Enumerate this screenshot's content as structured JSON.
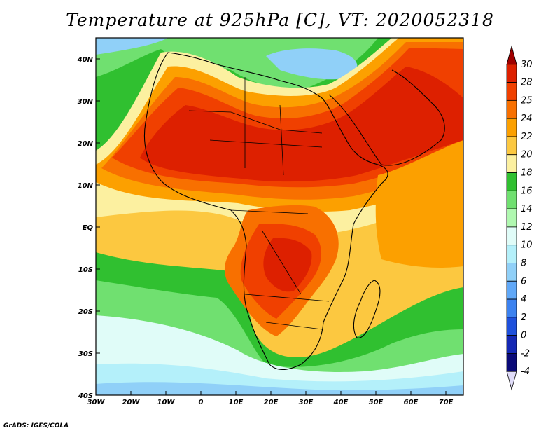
{
  "title": "Temperature at 925hPa [C], VT: 2020052318",
  "credit": "GrADS: IGES/COLA",
  "map": {
    "lon_range": [
      -30,
      75
    ],
    "lat_range": [
      -40,
      45
    ],
    "lon_ticks": [
      {
        "value": -30,
        "label": "30W"
      },
      {
        "value": -20,
        "label": "20W"
      },
      {
        "value": -10,
        "label": "10W"
      },
      {
        "value": 0,
        "label": "0"
      },
      {
        "value": 10,
        "label": "10E"
      },
      {
        "value": 20,
        "label": "20E"
      },
      {
        "value": 30,
        "label": "30E"
      },
      {
        "value": 40,
        "label": "40E"
      },
      {
        "value": 50,
        "label": "50E"
      },
      {
        "value": 60,
        "label": "60E"
      },
      {
        "value": 70,
        "label": "70E"
      }
    ],
    "lat_ticks": [
      {
        "value": 40,
        "label": "40N"
      },
      {
        "value": 30,
        "label": "30N"
      },
      {
        "value": 20,
        "label": "20N"
      },
      {
        "value": 10,
        "label": "10N"
      },
      {
        "value": 0,
        "label": "EQ"
      },
      {
        "value": -10,
        "label": "10S"
      },
      {
        "value": -20,
        "label": "20S"
      },
      {
        "value": -30,
        "label": "30S"
      },
      {
        "value": -40,
        "label": "40S"
      }
    ]
  },
  "colorbar": {
    "levels": [
      "30",
      "28",
      "25",
      "24",
      "22",
      "20",
      "18",
      "16",
      "14",
      "12",
      "10",
      "8",
      "6",
      "4",
      "2",
      "0",
      "-2",
      "-4"
    ],
    "colors": [
      "#a00000",
      "#dd2000",
      "#f04000",
      "#f87000",
      "#fca000",
      "#fcc840",
      "#fcf0a0",
      "#30c030",
      "#70e070",
      "#b0f8b0",
      "#e0fcf8",
      "#b4f0fa",
      "#90d0f8",
      "#60a8f8",
      "#3c82f0",
      "#1e50dc",
      "#1428b4",
      "#0a0a78",
      "#e0dcf8"
    ]
  },
  "palette": {
    "hot": "#dd2000",
    "warm": "#f04000",
    "orange": "#f87000",
    "amber": "#fca000",
    "yellow": "#fcc840",
    "pale": "#fcf0a0",
    "green": "#30c030",
    "lightgreen": "#70e070",
    "mint": "#b0f8b0",
    "ice": "#e0fcf8",
    "sky": "#b4f0fa",
    "blue": "#90d0f8",
    "deep": "#60a8f8"
  }
}
